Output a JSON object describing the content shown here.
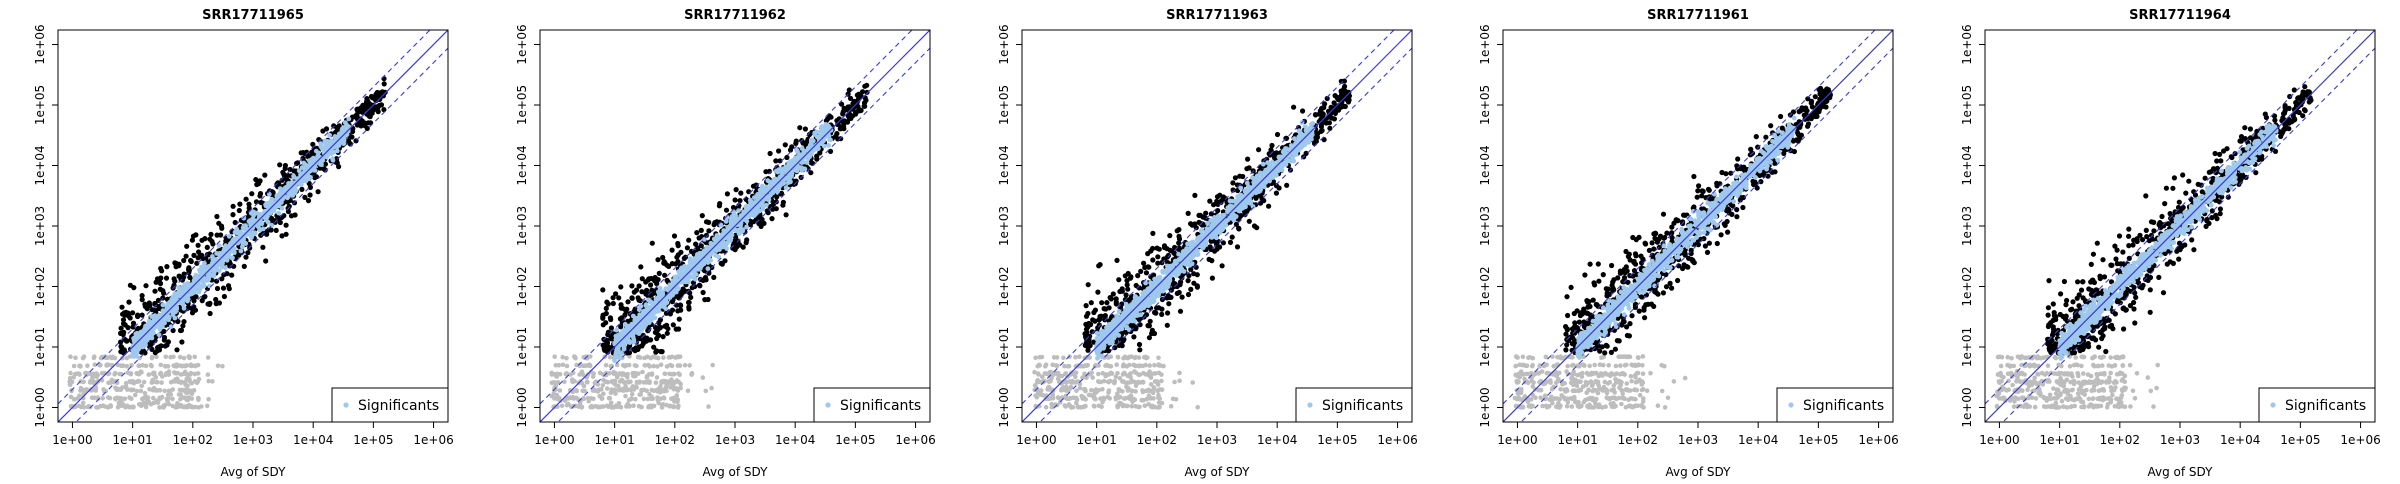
{
  "chart_data": [
    {
      "type": "scatter",
      "title": "SRR17711965",
      "xlabel": "Avg of SDY",
      "ylabel": "",
      "xscale": "log10",
      "yscale": "log10",
      "xlim": [
        1,
        1000000
      ],
      "ylim": [
        1,
        1000000
      ],
      "x_ticks": [
        "1e+00",
        "1e+01",
        "1e+02",
        "1e+03",
        "1e+04",
        "1e+05",
        "1e+06"
      ],
      "y_ticks": [
        "1e+00",
        "1e+01",
        "1e+02",
        "1e+03",
        "1e+04",
        "1e+05",
        "1e+06"
      ],
      "legend": {
        "position": "bottom-right",
        "entries": [
          "Significants"
        ]
      },
      "series": [
        {
          "name": "Significants",
          "color": "#9ec8ee"
        }
      ],
      "other_colors": {
        "strong": "#000000",
        "low_counts": "#bdbdbd",
        "reference_line": "#3b3bd6"
      },
      "reference_lines": {
        "identity": "y = x",
        "fold_band": "y = 2x and y = x/2 (dashed)"
      }
    },
    {
      "type": "scatter",
      "title": "SRR17711962",
      "xlabel": "Avg of SDY",
      "ylabel": "",
      "xscale": "log10",
      "yscale": "log10",
      "xlim": [
        1,
        1000000
      ],
      "ylim": [
        1,
        1000000
      ],
      "x_ticks": [
        "1e+00",
        "1e+01",
        "1e+02",
        "1e+03",
        "1e+04",
        "1e+05",
        "1e+06"
      ],
      "y_ticks": [
        "1e+00",
        "1e+01",
        "1e+02",
        "1e+03",
        "1e+04",
        "1e+05",
        "1e+06"
      ],
      "legend": {
        "position": "bottom-right",
        "entries": [
          "Significants"
        ]
      },
      "series": [
        {
          "name": "Significants",
          "color": "#9ec8ee"
        }
      ],
      "other_colors": {
        "strong": "#000000",
        "low_counts": "#bdbdbd",
        "reference_line": "#3b3bd6"
      },
      "reference_lines": {
        "identity": "y = x",
        "fold_band": "y = 2x and y = x/2 (dashed)"
      }
    },
    {
      "type": "scatter",
      "title": "SRR17711963",
      "xlabel": "Avg of SDY",
      "ylabel": "",
      "xscale": "log10",
      "yscale": "log10",
      "xlim": [
        1,
        1000000
      ],
      "ylim": [
        1,
        1000000
      ],
      "x_ticks": [
        "1e+00",
        "1e+01",
        "1e+02",
        "1e+03",
        "1e+04",
        "1e+05",
        "1e+06"
      ],
      "y_ticks": [
        "1e+00",
        "1e+01",
        "1e+02",
        "1e+03",
        "1e+04",
        "1e+05",
        "1e+06"
      ],
      "legend": {
        "position": "bottom-right",
        "entries": [
          "Significants"
        ]
      },
      "series": [
        {
          "name": "Significants",
          "color": "#9ec8ee"
        }
      ],
      "other_colors": {
        "strong": "#000000",
        "low_counts": "#bdbdbd",
        "reference_line": "#3b3bd6"
      },
      "reference_lines": {
        "identity": "y = x",
        "fold_band": "y = 2x and y = x/2 (dashed)"
      }
    },
    {
      "type": "scatter",
      "title": "SRR17711961",
      "xlabel": "Avg of SDY",
      "ylabel": "",
      "xscale": "log10",
      "yscale": "log10",
      "xlim": [
        1,
        1000000
      ],
      "ylim": [
        1,
        1000000
      ],
      "x_ticks": [
        "1e+00",
        "1e+01",
        "1e+02",
        "1e+03",
        "1e+04",
        "1e+05",
        "1e+06"
      ],
      "y_ticks": [
        "1e+00",
        "1e+01",
        "1e+02",
        "1e+03",
        "1e+04",
        "1e+05",
        "1e+06"
      ],
      "legend": {
        "position": "bottom-right",
        "entries": [
          "Significants"
        ]
      },
      "series": [
        {
          "name": "Significants",
          "color": "#9ec8ee"
        }
      ],
      "other_colors": {
        "strong": "#000000",
        "low_counts": "#bdbdbd",
        "reference_line": "#3b3bd6"
      },
      "reference_lines": {
        "identity": "y = x",
        "fold_band": "y = 2x and y = x/2 (dashed)"
      }
    },
    {
      "type": "scatter",
      "title": "SRR17711964",
      "xlabel": "Avg of SDY",
      "ylabel": "",
      "xscale": "log10",
      "yscale": "log10",
      "xlim": [
        1,
        1000000
      ],
      "ylim": [
        1,
        1000000
      ],
      "x_ticks": [
        "1e+00",
        "1e+01",
        "1e+02",
        "1e+03",
        "1e+04",
        "1e+05",
        "1e+06"
      ],
      "y_ticks": [
        "1e+00",
        "1e+01",
        "1e+02",
        "1e+03",
        "1e+04",
        "1e+05",
        "1e+06"
      ],
      "legend": {
        "position": "bottom-right",
        "entries": [
          "Significants"
        ]
      },
      "series": [
        {
          "name": "Significants",
          "color": "#9ec8ee"
        }
      ],
      "other_colors": {
        "strong": "#000000",
        "low_counts": "#bdbdbd",
        "reference_line": "#3b3bd6"
      },
      "reference_lines": {
        "identity": "y = x",
        "fold_band": "y = 2x and y = x/2 (dashed)"
      }
    }
  ]
}
